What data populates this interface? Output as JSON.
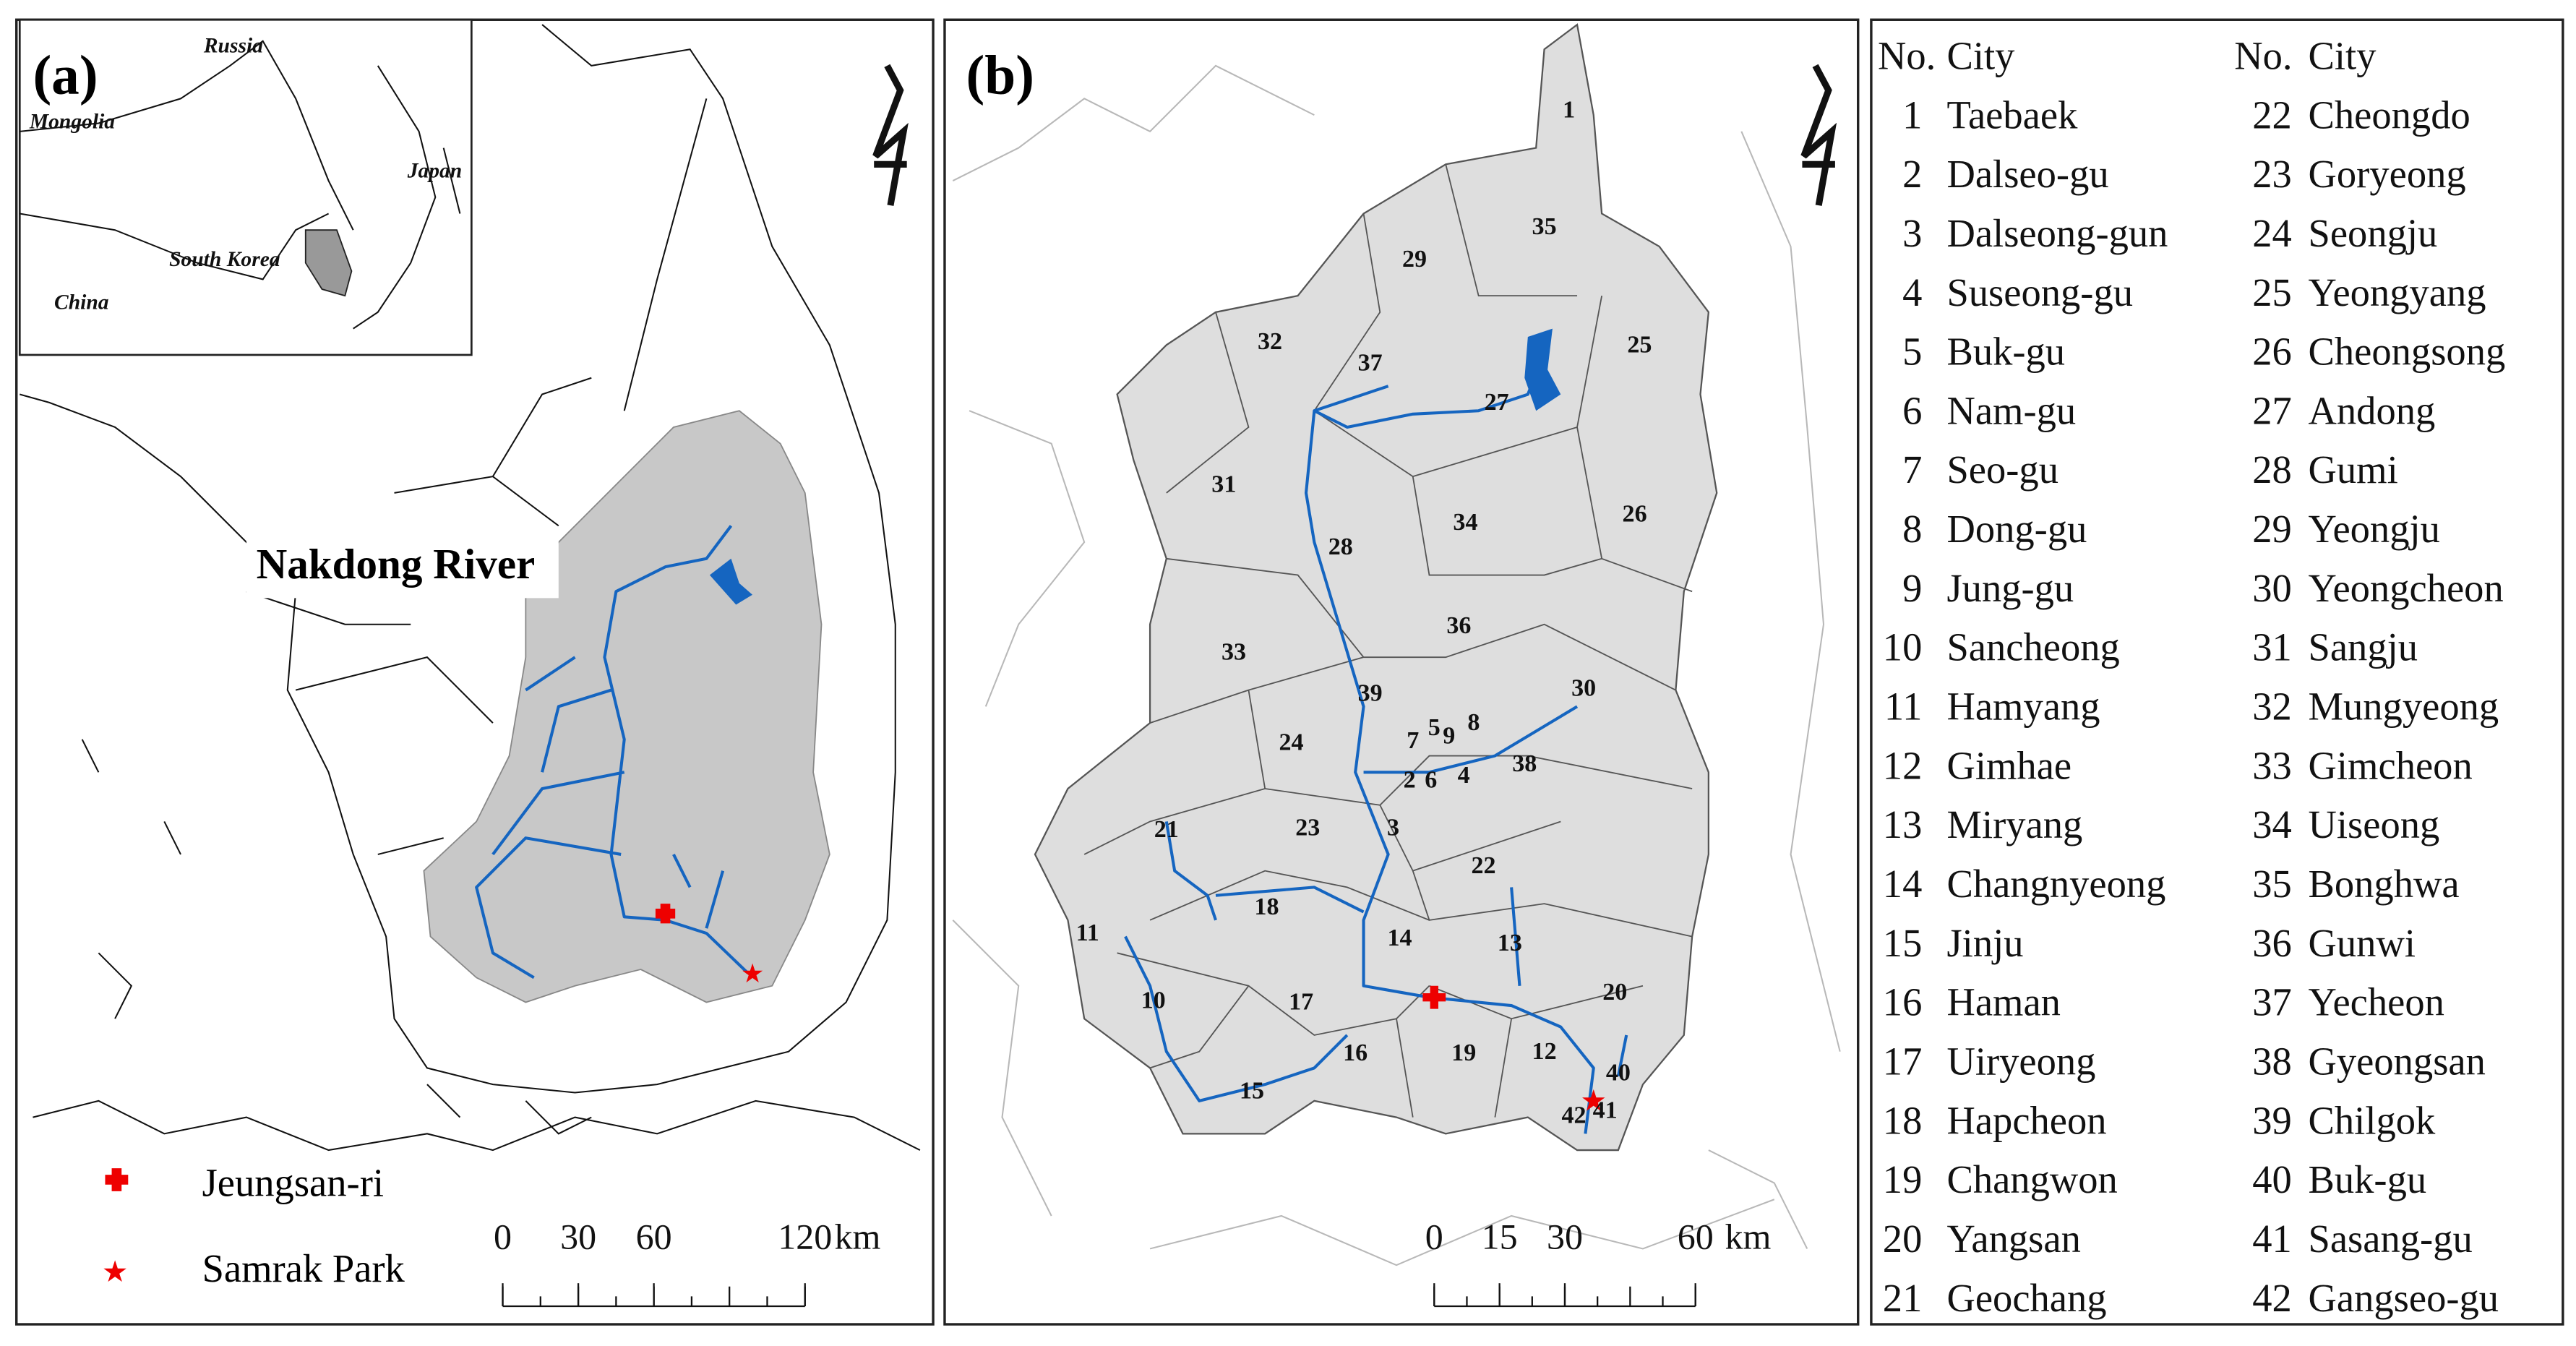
{
  "panel_a": {
    "label": "(a)",
    "inset_labels": {
      "russia": "Russia",
      "mongolia": "Mongolia",
      "japan": "Japan",
      "south_korea": "South Korea",
      "china": "China"
    },
    "river_label": "Nakdong River",
    "legend": [
      "Jeungsan-ri",
      "Samrak Park"
    ],
    "scale_bar": {
      "ticks": [
        0,
        30,
        60,
        120
      ],
      "unit": "km"
    }
  },
  "panel_b": {
    "label": "(b)",
    "scale_bar": {
      "ticks": [
        0,
        15,
        30,
        60
      ],
      "unit": "km"
    }
  },
  "table": {
    "columns": [
      "No.",
      "City",
      "No.",
      "City"
    ],
    "rows": [
      [
        1,
        "Taebaek",
        22,
        "Cheongdo"
      ],
      [
        2,
        "Dalseo-gu",
        23,
        "Goryeong"
      ],
      [
        3,
        "Dalseong-gun",
        24,
        "Seongju"
      ],
      [
        4,
        "Suseong-gu",
        25,
        "Yeongyang"
      ],
      [
        5,
        "Buk-gu",
        26,
        "Cheongsong"
      ],
      [
        6,
        "Nam-gu",
        27,
        "Andong"
      ],
      [
        7,
        "Seo-gu",
        28,
        "Gumi"
      ],
      [
        8,
        "Dong-gu",
        29,
        "Yeongju"
      ],
      [
        9,
        "Jung-gu",
        30,
        "Yeongcheon"
      ],
      [
        10,
        "Sancheong",
        31,
        "Sangju"
      ],
      [
        11,
        "Hamyang",
        32,
        "Mungyeong"
      ],
      [
        12,
        "Gimhae",
        33,
        "Gimcheon"
      ],
      [
        13,
        "Miryang",
        34,
        "Uiseong"
      ],
      [
        14,
        "Changnyeong",
        35,
        "Bonghwa"
      ],
      [
        15,
        "Jinju",
        36,
        "Gunwi"
      ],
      [
        16,
        "Haman",
        37,
        "Yecheon"
      ],
      [
        17,
        "Uiryeong",
        38,
        "Gyeongsan"
      ],
      [
        18,
        "Hapcheon",
        39,
        "Chilgok"
      ],
      [
        19,
        "Changwon",
        40,
        "Buk-gu"
      ],
      [
        20,
        "Yangsan",
        41,
        "Sasang-gu"
      ],
      [
        21,
        "Geochang",
        42,
        "Gangseo-gu"
      ]
    ]
  }
}
